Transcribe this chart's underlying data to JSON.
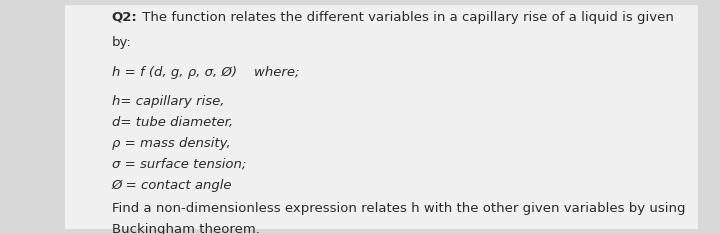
{
  "background_color": "#d8d8d8",
  "box_color": "#f0f0f0",
  "text_color": "#2a2a2a",
  "font_size": 9.5,
  "lm": 0.155,
  "title_bold": "Q2:",
  "title_normal": " The function relates the different variables in a capillary rise of a liquid is given",
  "title_line2": "by:",
  "formula": "h = f (d, g, ρ, σ, Ø)    where;",
  "def_lines": [
    "h= capillary rise,",
    "d= tube diameter,",
    "ρ = mass density,",
    "σ = surface tension;",
    "Ø = contact angle"
  ],
  "footer_line1": "Find a non-dimensionless expression relates h with the other given variables by using",
  "footer_line2": "Buckingham theorem."
}
